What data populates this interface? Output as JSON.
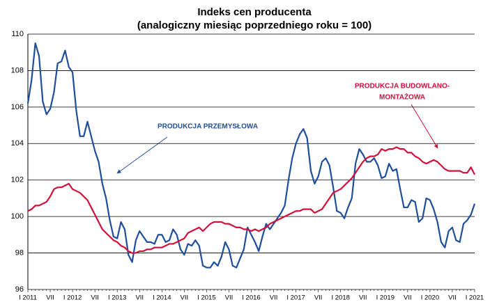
{
  "chart_data": {
    "type": "line",
    "title": "Indeks cen producenta",
    "subtitle": "(analogiczny miesiąc poprzedniego roku = 100)",
    "annotations": [
      "PRODUKCJA PRZEMYSŁOWA",
      "PRODUKCJA BUDOWLANO-",
      "MONTAŻOWA"
    ],
    "categories": [
      "I 2011",
      null,
      null,
      null,
      null,
      null,
      "VII",
      null,
      null,
      null,
      null,
      null,
      "I 2012",
      null,
      null,
      null,
      null,
      null,
      "VII",
      null,
      null,
      null,
      null,
      null,
      "I 2013",
      null,
      null,
      null,
      null,
      null,
      "VII",
      null,
      null,
      null,
      null,
      null,
      "I 2014",
      null,
      null,
      null,
      null,
      null,
      "VII",
      null,
      null,
      null,
      null,
      null,
      "I 2015",
      null,
      null,
      null,
      null,
      null,
      "VII",
      null,
      null,
      null,
      null,
      null,
      "I 2016",
      null,
      null,
      null,
      null,
      null,
      "VII",
      null,
      null,
      null,
      null,
      null,
      "I 2017",
      null,
      null,
      null,
      null,
      null,
      "VII",
      null,
      null,
      null,
      null,
      null,
      "I 2018",
      null,
      null,
      null,
      null,
      null,
      "VII",
      null,
      null,
      null,
      null,
      null,
      "I 2019",
      null,
      null,
      null,
      null,
      null,
      "VII",
      null,
      null,
      null,
      null,
      null,
      "I 2020",
      null,
      null,
      null,
      null,
      null,
      "VII",
      null,
      null,
      null,
      null,
      null,
      "I 2021"
    ],
    "series": [
      {
        "color": "#1f4e9c",
        "values": [
          106.2,
          107.5,
          109.5,
          108.8,
          106.3,
          105.6,
          105.9,
          106.8,
          108.4,
          108.5,
          109.1,
          108.2,
          107.9,
          105.8,
          104.4,
          104.4,
          105.2,
          104.4,
          103.6,
          103.0,
          101.8,
          101.0,
          99.8,
          98.9,
          98.8,
          99.7,
          99.3,
          97.9,
          97.5,
          98.7,
          99.2,
          98.9,
          98.6,
          98.6,
          98.5,
          99.0,
          99.0,
          98.6,
          98.7,
          99.3,
          99.0,
          98.2,
          97.9,
          98.5,
          98.4,
          98.7,
          98.4,
          97.3,
          97.2,
          97.2,
          97.5,
          97.3,
          97.8,
          98.6,
          98.2,
          97.3,
          97.2,
          97.7,
          98.2,
          99.4,
          99.0,
          98.6,
          98.1,
          98.9,
          99.6,
          99.3,
          99.6,
          99.9,
          100.2,
          100.6,
          102.0,
          103.2,
          104.0,
          104.5,
          104.8,
          104.3,
          102.5,
          101.8,
          102.2,
          103.0,
          103.2,
          102.8,
          101.6,
          100.3,
          100.2,
          99.9,
          100.5,
          101.0,
          102.9,
          103.7,
          103.4,
          103.0,
          103.0,
          103.2,
          102.8,
          102.1,
          102.2,
          102.9,
          102.5,
          102.6,
          101.5,
          100.5,
          100.5,
          100.9,
          100.8,
          99.7,
          99.9,
          101.0,
          100.9,
          100.4,
          99.7,
          98.6,
          98.3,
          99.2,
          99.4,
          98.7,
          98.6,
          99.6,
          99.8,
          100.1,
          100.7
        ]
      },
      {
        "color": "#d0103a",
        "values": [
          100.3,
          100.4,
          100.6,
          100.6,
          100.7,
          100.8,
          101.1,
          101.5,
          101.6,
          101.6,
          101.7,
          101.8,
          101.5,
          101.4,
          101.3,
          101.1,
          100.9,
          100.5,
          100.1,
          99.7,
          99.3,
          99.1,
          98.9,
          98.7,
          98.6,
          98.4,
          98.3,
          98.1,
          98.0,
          98.0,
          98.1,
          98.1,
          98.2,
          98.2,
          98.3,
          98.3,
          98.3,
          98.4,
          98.5,
          98.5,
          98.6,
          98.7,
          98.8,
          99.1,
          99.2,
          99.3,
          99.4,
          99.2,
          99.4,
          99.6,
          99.7,
          99.7,
          99.7,
          99.6,
          99.6,
          99.5,
          99.4,
          99.4,
          99.3,
          99.3,
          99.2,
          99.3,
          99.2,
          99.3,
          99.4,
          99.6,
          99.7,
          99.8,
          99.9,
          100.0,
          100.1,
          100.2,
          100.3,
          100.3,
          100.4,
          100.4,
          100.4,
          100.2,
          100.3,
          100.4,
          100.7,
          101.0,
          101.3,
          101.4,
          101.5,
          101.7,
          101.9,
          102.1,
          102.4,
          102.7,
          103.0,
          103.2,
          103.3,
          103.3,
          103.4,
          103.7,
          103.6,
          103.7,
          103.7,
          103.8,
          103.7,
          103.7,
          103.5,
          103.5,
          103.3,
          103.2,
          103.0,
          102.9,
          103.0,
          103.1,
          103.0,
          102.8,
          102.6,
          102.5,
          102.5,
          102.5,
          102.5,
          102.4,
          102.4,
          102.7,
          102.3
        ]
      }
    ],
    "ylim": [
      96,
      110
    ],
    "yticks": [
      96,
      98,
      100,
      102,
      104,
      106,
      108,
      110
    ],
    "grid": true
  }
}
